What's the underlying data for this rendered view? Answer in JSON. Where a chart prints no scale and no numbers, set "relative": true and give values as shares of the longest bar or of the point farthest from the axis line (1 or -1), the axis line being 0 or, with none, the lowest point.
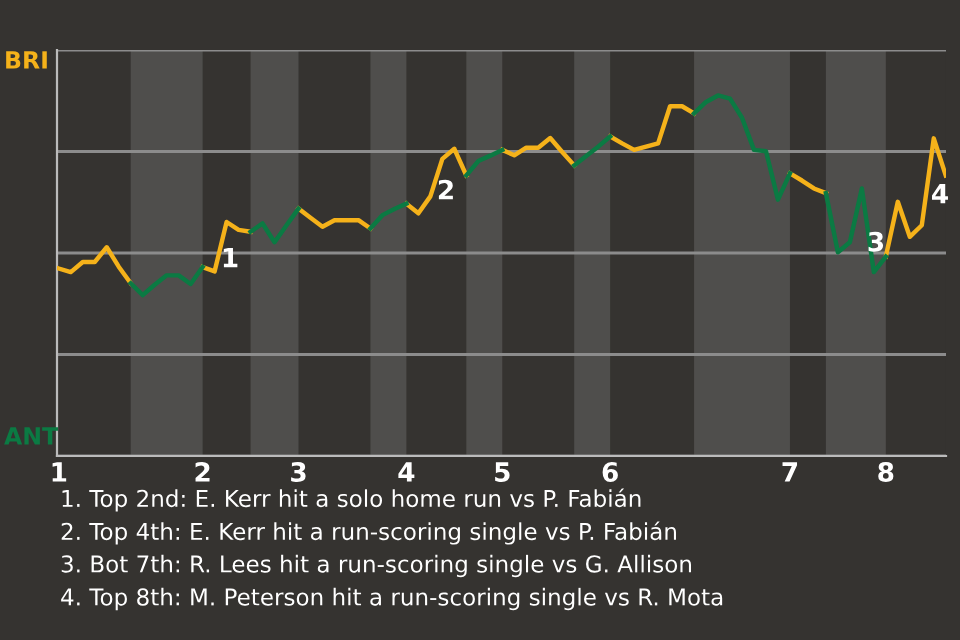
{
  "chart_data": {
    "type": "line",
    "relative": true,
    "categories": [
      "1",
      null,
      null,
      null,
      null,
      null,
      null,
      null,
      null,
      null,
      null,
      null,
      "2",
      null,
      null,
      null,
      null,
      null,
      null,
      null,
      "3",
      null,
      null,
      null,
      null,
      null,
      null,
      null,
      null,
      "4",
      null,
      null,
      null,
      null,
      null,
      null,
      null,
      "5",
      null,
      null,
      null,
      null,
      null,
      null,
      null,
      null,
      "6",
      null,
      null,
      null,
      null,
      null,
      null,
      null,
      null,
      null,
      null,
      null,
      null,
      null,
      null,
      "7",
      null,
      null,
      null,
      null,
      null,
      null,
      null,
      "8",
      null,
      null,
      null,
      null,
      null
    ],
    "series": [
      {
        "color": "#f5b21a",
        "values": [
          0.52,
          0.51,
          0.538,
          0.538,
          0.579,
          0.525,
          0.479,
          null,
          null,
          null,
          null,
          null,
          0.524,
          0.512,
          0.649,
          0.627,
          0.622,
          null,
          null,
          null,
          0.686,
          0.661,
          0.636,
          0.654,
          0.654,
          0.654,
          0.631,
          null,
          null,
          0.7,
          0.673,
          0.72,
          0.824,
          0.852,
          0.778,
          null,
          null,
          0.849,
          0.834,
          0.855,
          0.855,
          0.882,
          0.843,
          0.806,
          null,
          null,
          0.886,
          0.867,
          0.849,
          0.858,
          0.867,
          0.97,
          0.97,
          0.95,
          null,
          null,
          null,
          null,
          null,
          null,
          null,
          0.784,
          0.764,
          0.742,
          0.729,
          null,
          null,
          null,
          null,
          0.553,
          0.705,
          0.608,
          0.64,
          0.881,
          0.778
        ]
      },
      {
        "color": "#0b7a43",
        "values": [
          null,
          null,
          null,
          null,
          null,
          null,
          0.479,
          0.446,
          0.475,
          0.501,
          0.501,
          0.477,
          0.524,
          null,
          null,
          null,
          0.622,
          0.645,
          0.593,
          0.64,
          0.686,
          null,
          null,
          null,
          null,
          null,
          0.631,
          0.668,
          0.685,
          0.7,
          null,
          null,
          null,
          null,
          0.778,
          0.818,
          0.833,
          0.849,
          null,
          null,
          null,
          null,
          null,
          0.806,
          0.832,
          0.858,
          0.886,
          null,
          null,
          null,
          null,
          null,
          null,
          0.95,
          0.982,
          1,
          0.991,
          0.938,
          0.849,
          0.845,
          0.711,
          0.784,
          null,
          null,
          0.729,
          0.565,
          0.593,
          0.742,
          0.51,
          0.553,
          null,
          null,
          null,
          null,
          null
        ]
      }
    ],
    "ylim": [
      0,
      1.126
    ],
    "grid": "y",
    "annotations": [
      "BRI",
      "ANT",
      "1",
      "2",
      "3",
      "4",
      "1. Top 2nd: E. Kerr hit a solo home run vs P. Fabián",
      "2. Top 4th: E. Kerr hit a run-scoring single vs P. Fabián",
      "3. Bot 7th: R. Lees hit a run-scoring single vs G. Allison",
      "4. Top 8th: M. Peterson hit a run-scoring single vs R. Mota"
    ]
  }
}
